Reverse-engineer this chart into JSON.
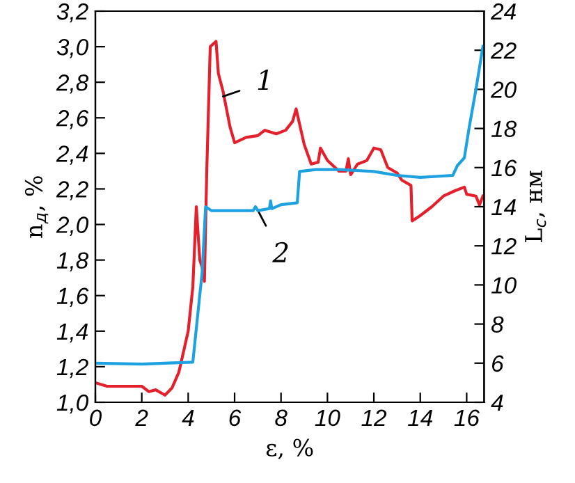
{
  "chart_data": {
    "type": "line",
    "xlabel": "ε, %",
    "ylabel": "n$_{д}$, %",
    "y2label": "L$_{с}$, нм",
    "xlim": [
      0,
      16.75
    ],
    "xticks": [
      0,
      2,
      4,
      6,
      8,
      10,
      12,
      14,
      16
    ],
    "ylim": [
      1.0,
      3.2
    ],
    "yticks": [
      {
        "value": 1.0,
        "label": "1,0"
      },
      {
        "value": 1.2,
        "label": "1,2"
      },
      {
        "value": 1.4,
        "label": "1,4"
      },
      {
        "value": 1.6,
        "label": "1,6"
      },
      {
        "value": 1.8,
        "label": "1,8"
      },
      {
        "value": 2.0,
        "label": "2,0"
      },
      {
        "value": 2.2,
        "label": "2,2"
      },
      {
        "value": 2.4,
        "label": "2,4"
      },
      {
        "value": 2.6,
        "label": "2,6"
      },
      {
        "value": 2.8,
        "label": "2,8"
      },
      {
        "value": 3.0,
        "label": "3,0"
      },
      {
        "value": 3.2,
        "label": "3,2"
      }
    ],
    "y2lim": [
      4,
      24
    ],
    "y2ticks": [
      4,
      6,
      8,
      10,
      12,
      14,
      16,
      18,
      20,
      22,
      24
    ],
    "grid": false,
    "legend": false,
    "marker": "none",
    "line_style": "solid",
    "series": [
      {
        "color": "#e3202b",
        "x": [
          0,
          0.5,
          2,
          2.3,
          2.6,
          3.0,
          3.3,
          3.6,
          4.0,
          4.2,
          4.35,
          4.5,
          4.6,
          4.7,
          4.8,
          4.95,
          5.2,
          5.3,
          5.5,
          5.8,
          6.0,
          6.5,
          7.0,
          7.3,
          7.8,
          8.2,
          8.5,
          8.65,
          9.0,
          9.3,
          9.6,
          9.7,
          10.0,
          10.5,
          10.8,
          10.9,
          11.0,
          11.3,
          11.7,
          12.0,
          12.3,
          12.6,
          13.0,
          13.2,
          13.6,
          13.65,
          14.0,
          14.5,
          15.0,
          15.5,
          15.9,
          16.0,
          16.4,
          16.55,
          16.7
        ],
        "values": [
          1.11,
          1.09,
          1.09,
          1.06,
          1.07,
          1.04,
          1.08,
          1.17,
          1.4,
          1.65,
          2.1,
          1.8,
          1.76,
          1.68,
          2.3,
          3.0,
          3.03,
          2.85,
          2.75,
          2.55,
          2.46,
          2.49,
          2.5,
          2.53,
          2.51,
          2.53,
          2.58,
          2.65,
          2.45,
          2.34,
          2.35,
          2.43,
          2.36,
          2.3,
          2.3,
          2.37,
          2.28,
          2.34,
          2.36,
          2.43,
          2.42,
          2.32,
          2.29,
          2.25,
          2.22,
          2.02,
          2.05,
          2.1,
          2.16,
          2.19,
          2.21,
          2.17,
          2.16,
          2.11,
          2.16
        ]
      },
      {
        "color": "#1da1e0",
        "axis": "y2",
        "x": [
          0,
          2,
          4.2,
          4.5,
          4.6,
          4.75,
          5.0,
          6.0,
          6.8,
          6.9,
          7.0,
          7.5,
          7.55,
          7.6,
          8.0,
          8.7,
          8.8,
          9.5,
          10.5,
          12.0,
          13.0,
          14.0,
          15.4,
          15.6,
          15.9,
          16.1,
          16.4,
          16.7
        ],
        "values": [
          6.0,
          5.95,
          6.05,
          9.5,
          10.6,
          14.0,
          13.8,
          13.8,
          13.8,
          14.0,
          13.8,
          13.9,
          14.3,
          13.9,
          14.1,
          14.2,
          15.8,
          15.9,
          15.9,
          15.8,
          15.6,
          15.5,
          15.6,
          16.1,
          16.5,
          18.0,
          20.0,
          22.2
        ]
      }
    ],
    "annotations": [
      {
        "text": "1",
        "x": 5.5,
        "y": 2.72
      },
      {
        "text": "2",
        "x": 7.0,
        "y": 2.08
      }
    ]
  }
}
